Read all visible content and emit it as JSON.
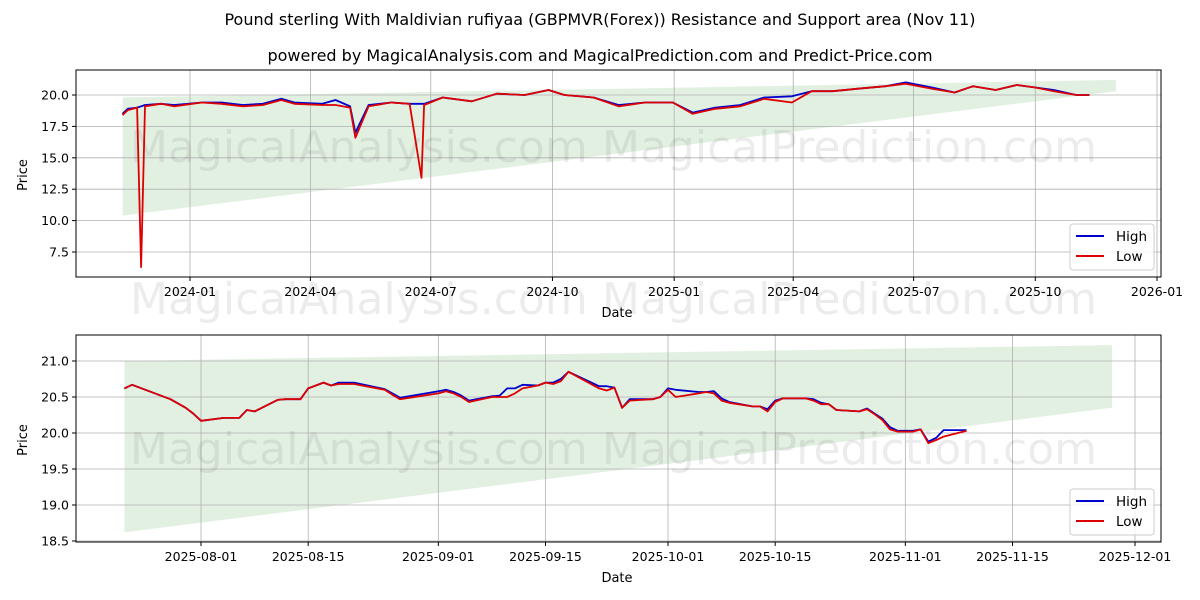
{
  "title": "Pound sterling With Maldivian rufiyaa (GBPMVR(Forex)) Resistance and Support area (Nov 11)",
  "subtitle": "powered by MagicalAnalysis.com and MagicalPrediction.com and Predict-Price.com",
  "watermarks": [
    "MagicalAnalysis.com",
    "MagicalPrediction.com"
  ],
  "colors": {
    "high": "#0000cc",
    "low": "#dd0000",
    "band": "#d6ead6",
    "grid": "#b0b0b0"
  },
  "legend": {
    "high": "High",
    "low": "Low"
  },
  "chart_data": [
    {
      "type": "line",
      "title": "",
      "xlabel": "Date",
      "ylabel": "Price",
      "ylim": [
        5.5,
        22.0
      ],
      "grid": true,
      "legend_position": "lower right",
      "xticks": [
        "2024-01",
        "2024-04",
        "2024-07",
        "2024-10",
        "2025-01",
        "2025-04",
        "2025-07",
        "2025-10",
        "2026-01"
      ],
      "yticks": [
        "7.5",
        "10.0",
        "12.5",
        "15.0",
        "17.5",
        "20.0"
      ],
      "band": {
        "x_start": "2023-11-11",
        "x_end": "2025-12-01",
        "upper": [
          19.8,
          21.2
        ],
        "lower": [
          10.4,
          20.3
        ]
      },
      "x": [
        "2023-11-11",
        "2023-11-15",
        "2023-11-22",
        "2023-11-25",
        "2023-11-28",
        "2023-12-10",
        "2023-12-20",
        "2024-01-10",
        "2024-01-25",
        "2024-02-10",
        "2024-02-25",
        "2024-03-10",
        "2024-03-20",
        "2024-04-10",
        "2024-04-20",
        "2024-05-01",
        "2024-05-05",
        "2024-05-15",
        "2024-06-01",
        "2024-06-15",
        "2024-06-24",
        "2024-06-26",
        "2024-07-10",
        "2024-08-01",
        "2024-08-20",
        "2024-09-10",
        "2024-09-28",
        "2024-10-10",
        "2024-11-01",
        "2024-11-20",
        "2024-12-10",
        "2024-12-31",
        "2025-01-15",
        "2025-02-01",
        "2025-02-20",
        "2025-03-10",
        "2025-03-31",
        "2025-04-15",
        "2025-05-01",
        "2025-05-20",
        "2025-06-10",
        "2025-06-25",
        "2025-07-15",
        "2025-08-01",
        "2025-08-15",
        "2025-09-01",
        "2025-09-17",
        "2025-10-01",
        "2025-10-15",
        "2025-11-01",
        "2025-11-11"
      ],
      "series": [
        {
          "name": "High",
          "values": [
            18.5,
            18.9,
            19.0,
            19.1,
            19.2,
            19.3,
            19.2,
            19.4,
            19.4,
            19.2,
            19.3,
            19.7,
            19.4,
            19.3,
            19.6,
            19.1,
            17.0,
            19.2,
            19.4,
            19.3,
            19.3,
            19.3,
            19.8,
            19.5,
            20.1,
            20.0,
            20.4,
            20.0,
            19.8,
            19.2,
            19.4,
            19.4,
            18.6,
            19.0,
            19.2,
            19.8,
            19.9,
            20.3,
            20.3,
            20.5,
            20.7,
            21.0,
            20.6,
            20.2,
            20.7,
            20.4,
            20.8,
            20.6,
            20.4,
            20.0,
            20.0
          ]
        },
        {
          "name": "Low",
          "values": [
            18.4,
            18.8,
            19.0,
            6.3,
            19.1,
            19.3,
            19.1,
            19.4,
            19.3,
            19.1,
            19.2,
            19.6,
            19.3,
            19.2,
            19.2,
            19.0,
            16.6,
            19.1,
            19.4,
            19.3,
            13.4,
            19.2,
            19.8,
            19.5,
            20.1,
            20.0,
            20.4,
            20.0,
            19.8,
            19.1,
            19.4,
            19.4,
            18.5,
            18.9,
            19.1,
            19.7,
            19.4,
            20.3,
            20.3,
            20.5,
            20.7,
            20.9,
            20.5,
            20.2,
            20.7,
            20.4,
            20.8,
            20.6,
            20.3,
            20.0,
            20.0
          ]
        }
      ]
    },
    {
      "type": "line",
      "title": "",
      "xlabel": "Date",
      "ylabel": "Price",
      "ylim": [
        18.45,
        21.35
      ],
      "grid": true,
      "legend_position": "lower right",
      "xticks": [
        "2025-08-01",
        "2025-08-15",
        "2025-09-01",
        "2025-09-15",
        "2025-10-01",
        "2025-10-15",
        "2025-11-01",
        "2025-11-15",
        "2025-12-01"
      ],
      "yticks": [
        "18.5",
        "19.0",
        "19.5",
        "20.0",
        "20.5",
        "21.0"
      ],
      "band": {
        "x_start": "2025-07-22",
        "x_end": "2025-11-28",
        "upper": [
          21.0,
          21.22
        ],
        "lower": [
          18.62,
          20.35
        ]
      },
      "x": [
        "2025-07-22",
        "2025-07-23",
        "2025-07-28",
        "2025-07-30",
        "2025-07-31",
        "2025-08-01",
        "2025-08-04",
        "2025-08-05",
        "2025-08-06",
        "2025-08-07",
        "2025-08-08",
        "2025-08-11",
        "2025-08-12",
        "2025-08-13",
        "2025-08-14",
        "2025-08-15",
        "2025-08-17",
        "2025-08-18",
        "2025-08-19",
        "2025-08-20",
        "2025-08-21",
        "2025-08-25",
        "2025-08-26",
        "2025-08-27",
        "2025-09-01",
        "2025-09-02",
        "2025-09-03",
        "2025-09-04",
        "2025-09-05",
        "2025-09-08",
        "2025-09-09",
        "2025-09-10",
        "2025-09-11",
        "2025-09-12",
        "2025-09-14",
        "2025-09-15",
        "2025-09-16",
        "2025-09-17",
        "2025-09-18",
        "2025-09-22",
        "2025-09-23",
        "2025-09-24",
        "2025-09-25",
        "2025-09-26",
        "2025-09-29",
        "2025-09-30",
        "2025-10-01",
        "2025-10-02",
        "2025-10-05",
        "2025-10-06",
        "2025-10-07",
        "2025-10-08",
        "2025-10-09",
        "2025-10-12",
        "2025-10-13",
        "2025-10-14",
        "2025-10-15",
        "2025-10-16",
        "2025-10-19",
        "2025-10-20",
        "2025-10-21",
        "2025-10-22",
        "2025-10-23",
        "2025-10-26",
        "2025-10-27",
        "2025-10-28",
        "2025-10-29",
        "2025-10-30",
        "2025-10-31",
        "2025-11-02",
        "2025-11-03",
        "2025-11-04",
        "2025-11-05",
        "2025-11-06",
        "2025-11-09"
      ],
      "series": [
        {
          "name": "High",
          "values": [
            20.62,
            20.67,
            20.47,
            20.35,
            20.27,
            20.17,
            20.21,
            20.21,
            20.21,
            20.32,
            20.3,
            20.46,
            20.47,
            20.47,
            20.47,
            20.62,
            20.7,
            20.66,
            20.7,
            20.7,
            20.7,
            20.61,
            20.55,
            20.49,
            20.58,
            20.6,
            20.57,
            20.52,
            20.45,
            20.51,
            20.52,
            20.62,
            20.62,
            20.67,
            20.66,
            20.7,
            20.7,
            20.75,
            20.85,
            20.65,
            20.65,
            20.63,
            20.35,
            20.47,
            20.47,
            20.5,
            20.62,
            20.6,
            20.57,
            20.57,
            20.58,
            20.48,
            20.43,
            20.37,
            20.37,
            20.33,
            20.45,
            20.48,
            20.48,
            20.47,
            20.42,
            20.4,
            20.32,
            20.3,
            20.34,
            20.27,
            20.2,
            20.08,
            20.03,
            20.03,
            20.05,
            19.88,
            19.93,
            20.04,
            20.04
          ]
        },
        {
          "name": "Low",
          "values": [
            20.62,
            20.67,
            20.47,
            20.35,
            20.27,
            20.17,
            20.21,
            20.21,
            20.21,
            20.32,
            20.3,
            20.46,
            20.47,
            20.47,
            20.47,
            20.62,
            20.7,
            20.66,
            20.68,
            20.68,
            20.68,
            20.6,
            20.53,
            20.47,
            20.55,
            20.58,
            20.55,
            20.5,
            20.43,
            20.5,
            20.5,
            20.5,
            20.55,
            20.62,
            20.66,
            20.7,
            20.68,
            20.72,
            20.85,
            20.62,
            20.59,
            20.63,
            20.35,
            20.45,
            20.47,
            20.5,
            20.6,
            20.5,
            20.55,
            20.57,
            20.55,
            20.45,
            20.42,
            20.37,
            20.37,
            20.3,
            20.43,
            20.48,
            20.48,
            20.45,
            20.4,
            20.4,
            20.32,
            20.3,
            20.33,
            20.26,
            20.18,
            20.05,
            20.02,
            20.02,
            20.05,
            19.86,
            19.9,
            19.95,
            20.03
          ]
        }
      ]
    }
  ]
}
